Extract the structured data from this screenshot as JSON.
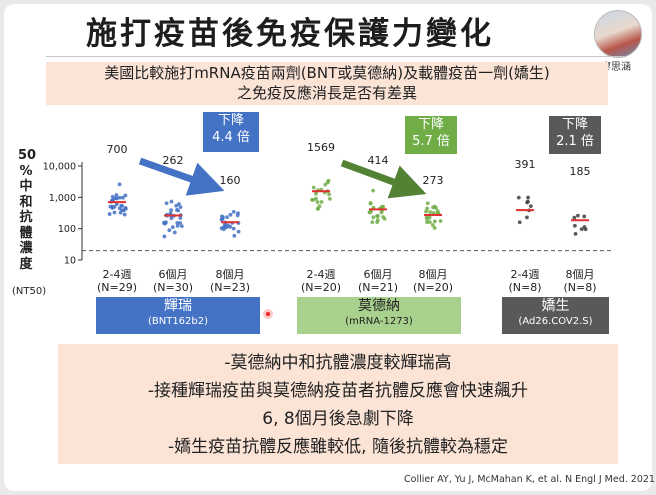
{
  "title": "施打疫苗後免疫保護力變化",
  "presenter": "廖思涵",
  "subtitle_line1": "美國比較施打mRNA疫苗兩劑(BNT或莫德納)及載體疫苗一劑(嬌生)",
  "subtitle_line2": "之免疫反應消長是否有差異",
  "y_axis_label": [
    "50",
    "%",
    "中",
    "和",
    "抗",
    "體",
    "濃",
    "度"
  ],
  "y_axis_unit": "(NT50)",
  "decline_boxes": [
    {
      "line1": "下降",
      "line2": "4.4 倍",
      "color": "#4472c4"
    },
    {
      "line1": "下降",
      "line2": "5.7 倍",
      "color": "#70ad47"
    },
    {
      "line1": "下降",
      "line2": "2.1 倍",
      "color": "#595959"
    }
  ],
  "groups": [
    {
      "name": "輝瑞",
      "sub": "(BNT162b2)",
      "color": "#4472c4"
    },
    {
      "name": "莫德納",
      "sub": "(mRNA-1273)",
      "color": "#a9d18e"
    },
    {
      "name": "嬌生",
      "sub": "(Ad26.COV2.S)",
      "color": "#595959"
    }
  ],
  "bullets": [
    "-莫德納中和抗體濃度較輝瑞高",
    "-接種輝瑞疫苗與莫德納疫苗者抗體反應會快速飆升",
    "6, 8個月後急劇下降",
    "-嬌生疫苗抗體反應雖較低, 隨後抗體較為穩定"
  ],
  "citation": "Collier AY, Yu J, McMahan K, et al. N Engl J Med. 2021",
  "chart_data": {
    "type": "scatter",
    "ylabel": "50%中和抗體濃度 (NT50)",
    "yscale": "log",
    "ylim": [
      10,
      10000
    ],
    "yticks": [
      "10,000",
      "1,000",
      "100",
      "10"
    ],
    "categories": [
      {
        "label": "2-4週",
        "n": "(N=29)",
        "group": "輝瑞",
        "median": 700,
        "median_label": "700",
        "color": "#4472c4"
      },
      {
        "label": "6個月",
        "n": "(N=30)",
        "group": "輝瑞",
        "median": 262,
        "median_label": "262",
        "color": "#4472c4"
      },
      {
        "label": "8個月",
        "n": "(N=23)",
        "group": "輝瑞",
        "median": 160,
        "median_label": "160",
        "color": "#4472c4"
      },
      {
        "label": "2-4週",
        "n": "(N=20)",
        "group": "莫德納",
        "median": 1569,
        "median_label": "1569",
        "color": "#70ad47"
      },
      {
        "label": "6個月",
        "n": "(N=21)",
        "group": "莫德納",
        "median": 414,
        "median_label": "414",
        "color": "#70ad47"
      },
      {
        "label": "8個月",
        "n": "(N=20)",
        "group": "莫德納",
        "median": 273,
        "median_label": "273",
        "color": "#70ad47"
      },
      {
        "label": "2-4週",
        "n": "(N=8)",
        "group": "嬌生",
        "median": 391,
        "median_label": "391",
        "color": "#404040"
      },
      {
        "label": "8個月",
        "n": "(N=8)",
        "group": "嬌生",
        "median": 185,
        "median_label": "185",
        "color": "#404040"
      }
    ],
    "limit_of_detection": 20
  }
}
